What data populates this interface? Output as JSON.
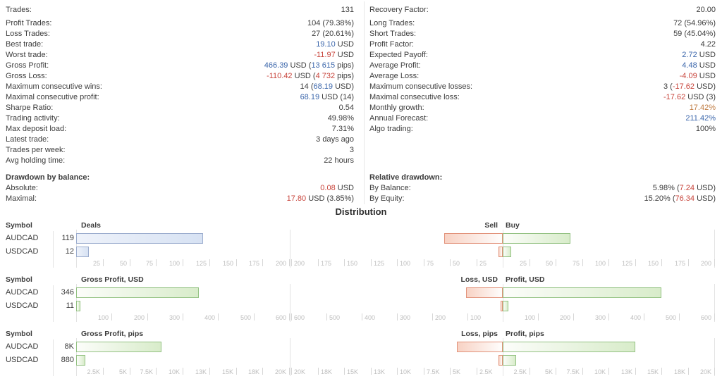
{
  "colors": {
    "text": "#3c3c3c",
    "positive_blue": "#3b66ab",
    "negative_red": "#c8453c",
    "growth_orange": "#c07c42",
    "bar_blue_border": "#9cadce",
    "bar_blue_fill": "#d7e2f3",
    "bar_green_border": "#94c283",
    "bar_green_fill": "#d8ecca",
    "bar_red_border": "#e2937b",
    "bar_red_fill": "#f8d2c4"
  },
  "stats": {
    "left": [
      {
        "label": "Trades:",
        "segs": [
          [
            "131",
            "p"
          ]
        ]
      },
      {
        "label": "Profit Trades:",
        "segs": [
          [
            "104 (79.38%)",
            "p"
          ]
        ],
        "new_group": true
      },
      {
        "label": "Loss Trades:",
        "segs": [
          [
            "27 (20.61%)",
            "p"
          ]
        ]
      },
      {
        "label": "Best trade:",
        "segs": [
          [
            "19.10",
            "b"
          ],
          [
            " USD",
            "p"
          ]
        ]
      },
      {
        "label": "Worst trade:",
        "segs": [
          [
            "-11.97",
            "r"
          ],
          [
            " USD",
            "p"
          ]
        ]
      },
      {
        "label": "Gross Profit:",
        "segs": [
          [
            "466.39",
            "b"
          ],
          [
            " USD (",
            "p"
          ],
          [
            "13 615",
            "b"
          ],
          [
            " pips)",
            "p"
          ]
        ]
      },
      {
        "label": "Gross Loss:",
        "segs": [
          [
            "-110.42",
            "r"
          ],
          [
            " USD (",
            "p"
          ],
          [
            "4 732",
            "r"
          ],
          [
            " pips)",
            "p"
          ]
        ]
      },
      {
        "label": "Maximum consecutive wins:",
        "segs": [
          [
            "14 (",
            "p"
          ],
          [
            "68.19",
            "b"
          ],
          [
            " USD)",
            "p"
          ]
        ]
      },
      {
        "label": "Maximal consecutive profit:",
        "segs": [
          [
            "68.19",
            "b"
          ],
          [
            " USD (14)",
            "p"
          ]
        ]
      },
      {
        "label": "Sharpe Ratio:",
        "segs": [
          [
            "0.54",
            "p"
          ]
        ]
      },
      {
        "label": "Trading activity:",
        "segs": [
          [
            "49.98%",
            "p"
          ]
        ]
      },
      {
        "label": "Max deposit load:",
        "segs": [
          [
            "7.31%",
            "p"
          ]
        ]
      },
      {
        "label": "Latest trade:",
        "segs": [
          [
            "3 days ago",
            "p"
          ]
        ]
      },
      {
        "label": "Trades per week:",
        "segs": [
          [
            "3",
            "p"
          ]
        ]
      },
      {
        "label": "Avg holding time:",
        "segs": [
          [
            "22 hours",
            "p"
          ]
        ]
      },
      {
        "label": "Drawdown by balance:",
        "segs": [],
        "bold": true
      },
      {
        "label": "Absolute:",
        "segs": [
          [
            "0.08",
            "r"
          ],
          [
            " USD",
            "p"
          ]
        ]
      },
      {
        "label": "Maximal:",
        "segs": [
          [
            "17.80",
            "r"
          ],
          [
            " USD (3.85%)",
            "p"
          ]
        ]
      }
    ],
    "right": [
      {
        "label": "Recovery Factor:",
        "segs": [
          [
            "20.00",
            "p"
          ]
        ]
      },
      {
        "label": "Long Trades:",
        "segs": [
          [
            "72 (54.96%)",
            "p"
          ]
        ],
        "new_group": true
      },
      {
        "label": "Short Trades:",
        "segs": [
          [
            "59 (45.04%)",
            "p"
          ]
        ]
      },
      {
        "label": "Profit Factor:",
        "segs": [
          [
            "4.22",
            "p"
          ]
        ]
      },
      {
        "label": "Expected Payoff:",
        "segs": [
          [
            "2.72",
            "b"
          ],
          [
            " USD",
            "p"
          ]
        ]
      },
      {
        "label": "Average Profit:",
        "segs": [
          [
            "4.48",
            "b"
          ],
          [
            " USD",
            "p"
          ]
        ]
      },
      {
        "label": "Average Loss:",
        "segs": [
          [
            "-4.09",
            "r"
          ],
          [
            " USD",
            "p"
          ]
        ]
      },
      {
        "label": "Maximum consecutive losses:",
        "segs": [
          [
            "3 (",
            "p"
          ],
          [
            "-17.62",
            "r"
          ],
          [
            " USD)",
            "p"
          ]
        ]
      },
      {
        "label": "Maximal consecutive loss:",
        "segs": [
          [
            "-17.62",
            "r"
          ],
          [
            " USD (3)",
            "p"
          ]
        ]
      },
      {
        "label": "Monthly growth:",
        "segs": [
          [
            "17.42%",
            "o"
          ]
        ]
      },
      {
        "label": "Annual Forecast:",
        "segs": [
          [
            "211.42%",
            "b"
          ]
        ]
      },
      {
        "label": "Algo trading:",
        "segs": [
          [
            "100%",
            "p"
          ]
        ]
      },
      {
        "label": "",
        "segs": []
      },
      {
        "label": "",
        "segs": []
      },
      {
        "label": "",
        "segs": []
      },
      {
        "label": "Relative drawdown:",
        "segs": [],
        "bold": true
      },
      {
        "label": "By Balance:",
        "segs": [
          [
            "5.98% (",
            "p"
          ],
          [
            "7.24",
            "r"
          ],
          [
            " USD)",
            "p"
          ]
        ]
      },
      {
        "label": "By Equity:",
        "segs": [
          [
            "15.20% (",
            "p"
          ],
          [
            "76.34",
            "r"
          ],
          [
            " USD)",
            "p"
          ]
        ]
      }
    ]
  },
  "distribution": {
    "title": "Distribution",
    "symbol_header": "Symbol",
    "charts": [
      {
        "axis_ticks": [
          {
            "v": 25,
            "label": "25"
          },
          {
            "v": 50,
            "label": "50"
          },
          {
            "v": 75,
            "label": "75"
          },
          {
            "v": 100,
            "label": "100"
          },
          {
            "v": 125,
            "label": "125"
          },
          {
            "v": 150,
            "label": "150"
          },
          {
            "v": 175,
            "label": "175"
          },
          {
            "v": 200,
            "label": "200"
          }
        ],
        "left": {
          "title": "Deals",
          "max": 200,
          "bar": "blue",
          "rows": [
            {
              "symbol": "AUDCAD",
              "value_label": "119",
              "value": 119
            },
            {
              "symbol": "USDCAD",
              "value_label": "12",
              "value": 12
            }
          ]
        },
        "right": {
          "neg_title": "Sell",
          "pos_title": "Buy",
          "max": 200,
          "rows": [
            {
              "symbol": "AUDCAD",
              "neg": 55,
              "pos": 64
            },
            {
              "symbol": "USDCAD",
              "neg": 4,
              "pos": 8
            }
          ]
        }
      },
      {
        "axis_ticks": [
          {
            "v": 100,
            "label": "100"
          },
          {
            "v": 200,
            "label": "200"
          },
          {
            "v": 300,
            "label": "300"
          },
          {
            "v": 400,
            "label": "400"
          },
          {
            "v": 500,
            "label": "500"
          },
          {
            "v": 600,
            "label": "600"
          }
        ],
        "left": {
          "title": "Gross Profit, USD",
          "max": 600,
          "bar": "green",
          "rows": [
            {
              "symbol": "AUDCAD",
              "value_label": "346",
              "value": 346
            },
            {
              "symbol": "USDCAD",
              "value_label": "11",
              "value": 11
            }
          ]
        },
        "right": {
          "neg_title": "Loss, USD",
          "pos_title": "Profit, USD",
          "max": 600,
          "rows": [
            {
              "symbol": "AUDCAD",
              "neg": 104,
              "pos": 450
            },
            {
              "symbol": "USDCAD",
              "neg": 6,
              "pos": 16
            }
          ]
        }
      },
      {
        "axis_ticks": [
          {
            "v": 2500,
            "label": "2.5K"
          },
          {
            "v": 5000,
            "label": "5K"
          },
          {
            "v": 7500,
            "label": "7.5K"
          },
          {
            "v": 10000,
            "label": "10K"
          },
          {
            "v": 12500,
            "label": "13K"
          },
          {
            "v": 15000,
            "label": "15K"
          },
          {
            "v": 17500,
            "label": "18K"
          },
          {
            "v": 20000,
            "label": "20K"
          }
        ],
        "left": {
          "title": "Gross Profit, pips",
          "max": 20000,
          "bar": "green",
          "rows": [
            {
              "symbol": "AUDCAD",
              "value_label": "8K",
              "value": 8000
            },
            {
              "symbol": "USDCAD",
              "value_label": "880",
              "value": 880
            }
          ]
        },
        "right": {
          "neg_title": "Loss, pips",
          "pos_title": "Profit, pips",
          "max": 20000,
          "rows": [
            {
              "symbol": "AUDCAD",
              "neg": 4300,
              "pos": 12500
            },
            {
              "symbol": "USDCAD",
              "neg": 400,
              "pos": 1270
            }
          ]
        }
      }
    ]
  },
  "chart_data": [
    {
      "type": "bar",
      "title": "Deals",
      "categories": [
        "AUDCAD",
        "USDCAD"
      ],
      "series": [
        {
          "name": "Deals",
          "values": [
            119,
            12
          ]
        },
        {
          "name": "Sell",
          "values": [
            55,
            4
          ]
        },
        {
          "name": "Buy",
          "values": [
            64,
            8
          ]
        }
      ],
      "xlim": [
        0,
        200
      ]
    },
    {
      "type": "bar",
      "title": "Gross Profit, USD",
      "categories": [
        "AUDCAD",
        "USDCAD"
      ],
      "series": [
        {
          "name": "Gross Profit, USD",
          "values": [
            346,
            11
          ]
        },
        {
          "name": "Loss, USD",
          "values": [
            -104,
            -6
          ]
        },
        {
          "name": "Profit, USD",
          "values": [
            450,
            16
          ]
        }
      ],
      "xlim": [
        0,
        600
      ]
    },
    {
      "type": "bar",
      "title": "Gross Profit, pips",
      "categories": [
        "AUDCAD",
        "USDCAD"
      ],
      "series": [
        {
          "name": "Gross Profit, pips",
          "values": [
            8000,
            880
          ]
        },
        {
          "name": "Loss, pips",
          "values": [
            -4300,
            -400
          ]
        },
        {
          "name": "Profit, pips",
          "values": [
            12500,
            1270
          ]
        }
      ],
      "xlim": [
        0,
        20000
      ]
    }
  ]
}
